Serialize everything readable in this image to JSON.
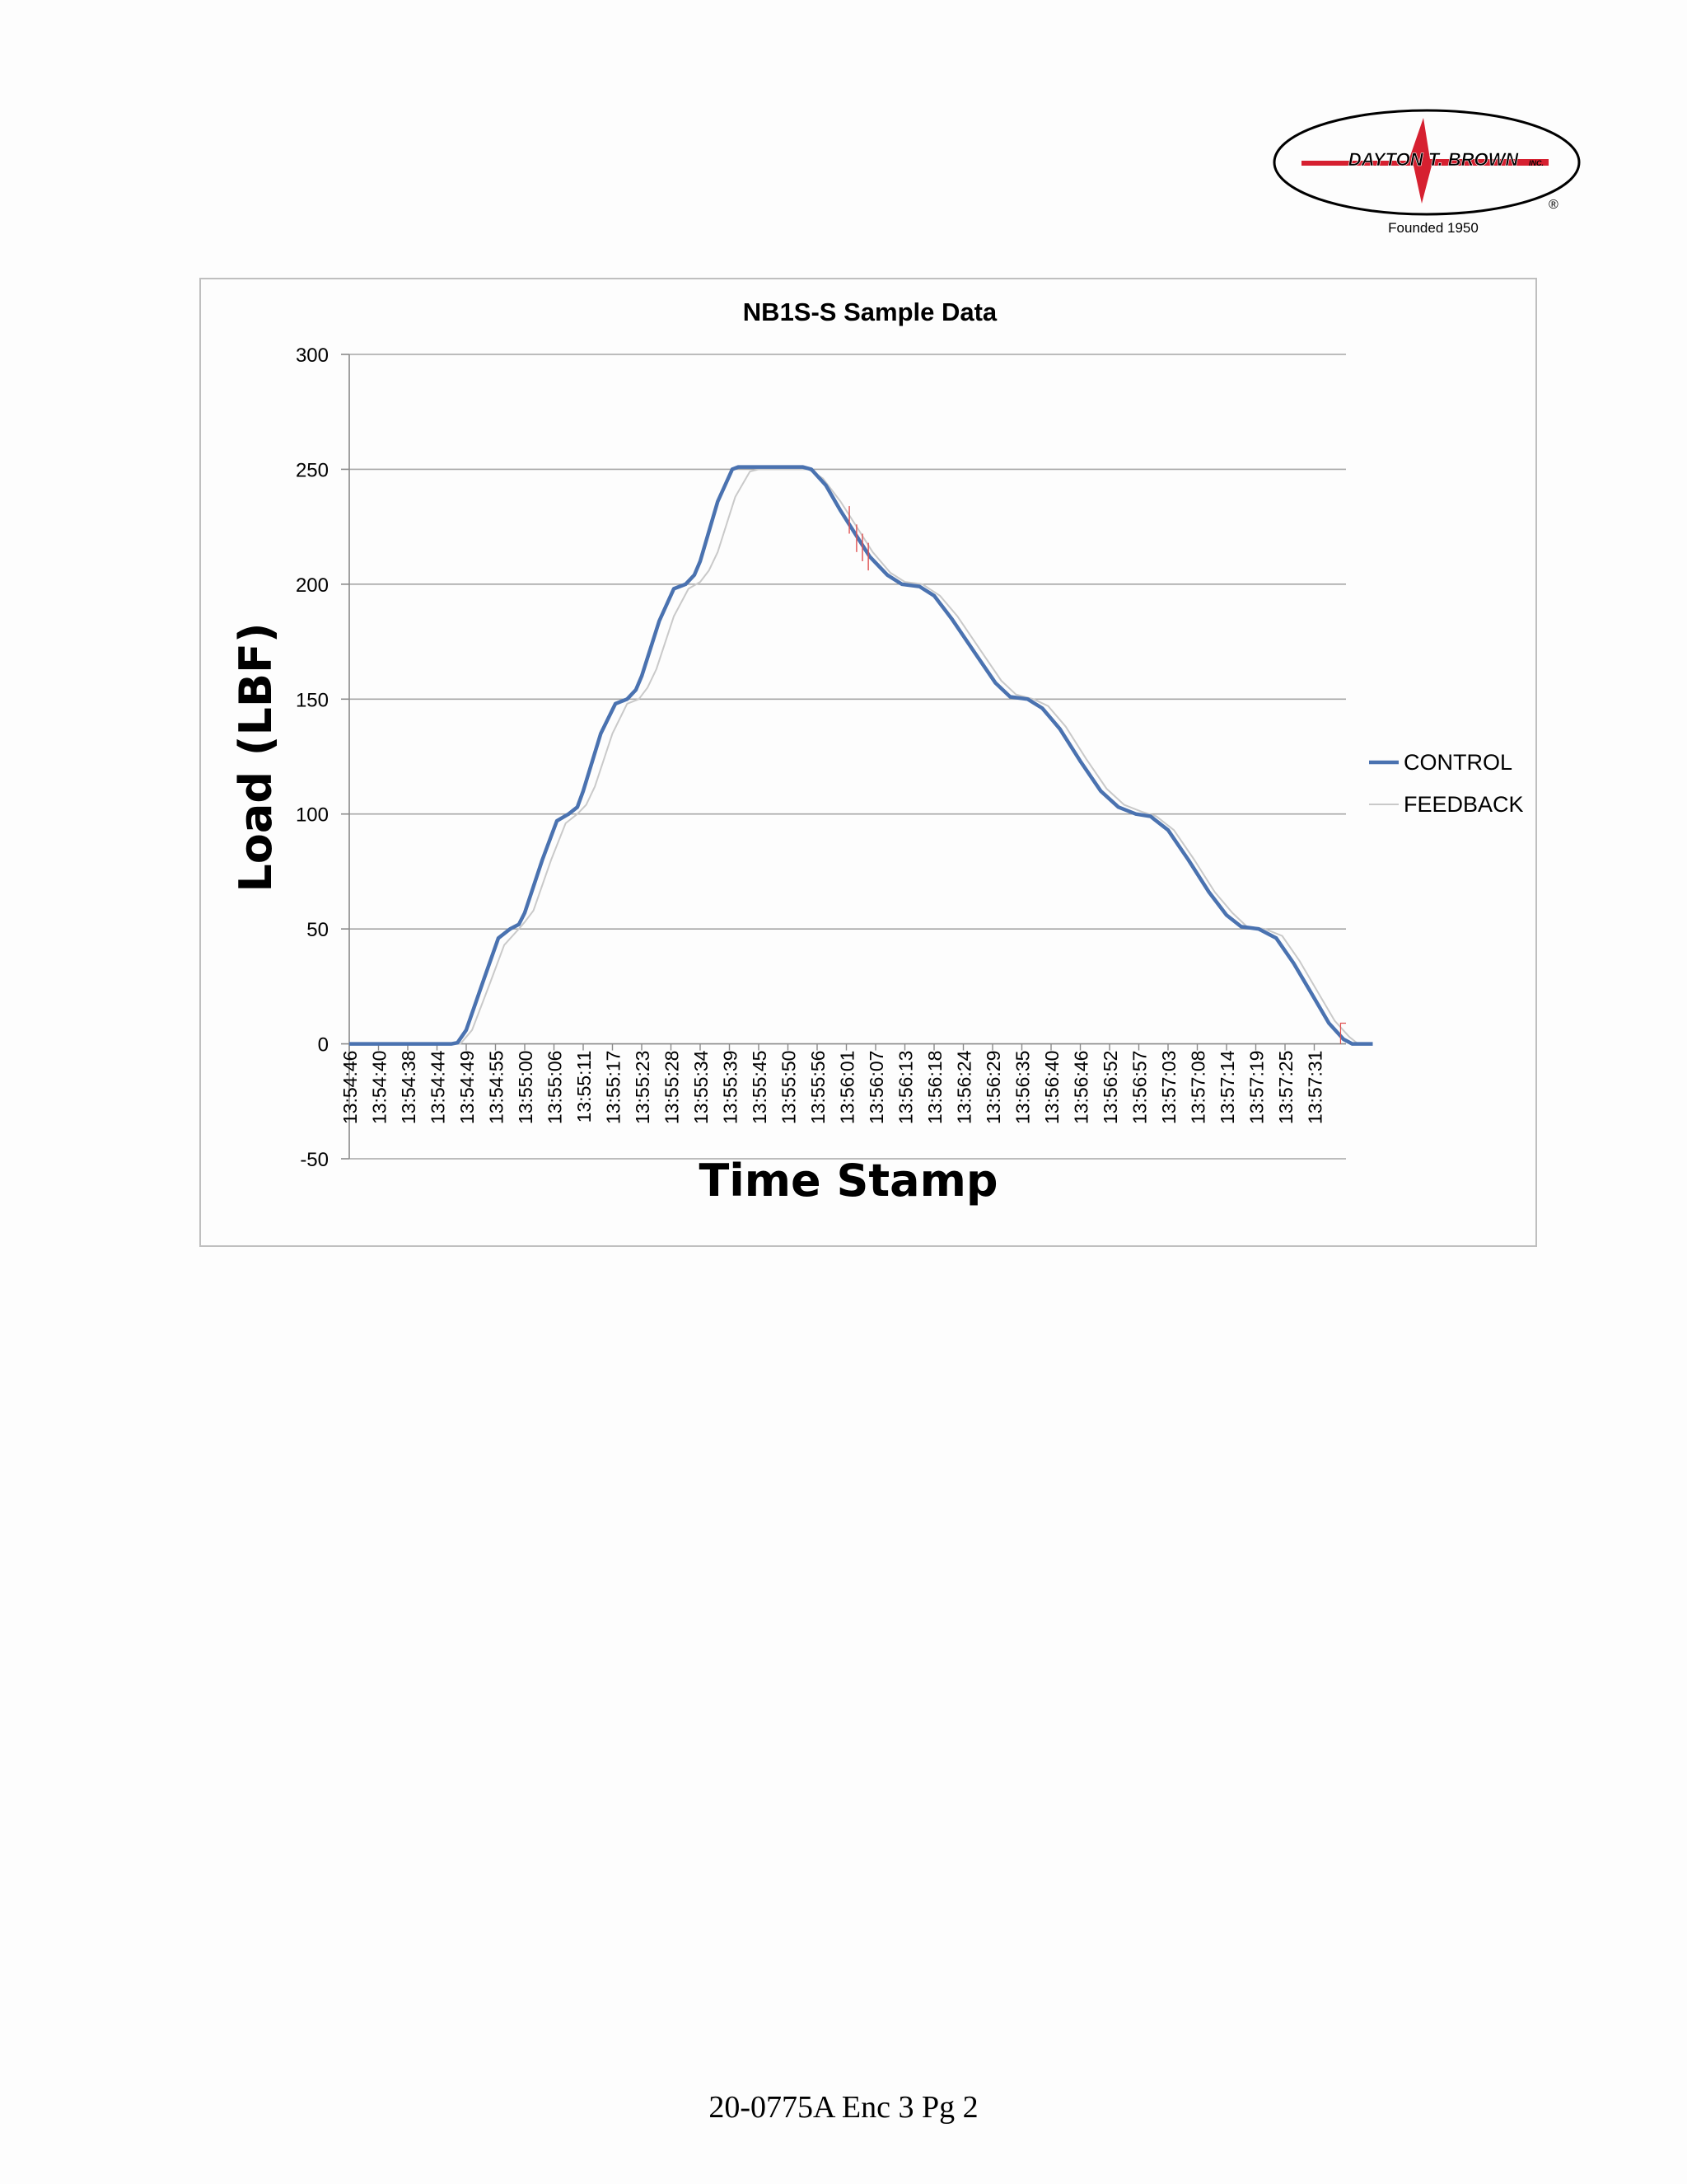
{
  "logo": {
    "company": "DAYTON T. BROWN",
    "suffix": "INC.",
    "founded": "Founded 1950",
    "registered": "®"
  },
  "footer": {
    "text": "20-0775A Enc 3 Pg 2"
  },
  "colors": {
    "control": "#4a72b0",
    "feedback": "#c9c9c9",
    "red_trace": "#e05050",
    "logo_red": "#d62030",
    "grid": "#a6a6a6"
  },
  "chart_data": {
    "type": "line",
    "title": "NB1S-S Sample Data",
    "xlabel": "Time Stamp",
    "ylabel": "Load (LBF)",
    "ylim": [
      -50,
      300
    ],
    "yticks": [
      -50,
      0,
      50,
      100,
      150,
      200,
      250,
      300
    ],
    "grid": true,
    "legend_position": "right",
    "categories": [
      "13:54:46",
      "13:54:40",
      "13:54:38",
      "13:54:44",
      "13:54:49",
      "13:54:55",
      "13:55:00",
      "13:55:06",
      "13:55:11",
      "13:55:17",
      "13:55:23",
      "13:55:28",
      "13:55:34",
      "13:55:39",
      "13:55:45",
      "13:55:50",
      "13:55:56",
      "13:56:01",
      "13:56:07",
      "13:56:13",
      "13:56:18",
      "13:56:24",
      "13:56:29",
      "13:56:35",
      "13:56:40",
      "13:56:46",
      "13:56:52",
      "13:56:57",
      "13:57:03",
      "13:57:08",
      "13:57:14",
      "13:57:19",
      "13:57:25",
      "13:57:31"
    ],
    "series": [
      {
        "name": "CONTROL",
        "points": [
          [
            0,
            0
          ],
          [
            3.5,
            0
          ],
          [
            3.7,
            0.5
          ],
          [
            4,
            6
          ],
          [
            4.6,
            28
          ],
          [
            5.1,
            46
          ],
          [
            5.5,
            50
          ],
          [
            5.8,
            52
          ],
          [
            6,
            57
          ],
          [
            6.6,
            80
          ],
          [
            7.1,
            97
          ],
          [
            7.5,
            100
          ],
          [
            7.8,
            103
          ],
          [
            8,
            110
          ],
          [
            8.6,
            135
          ],
          [
            9.1,
            148
          ],
          [
            9.5,
            150
          ],
          [
            9.8,
            154
          ],
          [
            10,
            160
          ],
          [
            10.6,
            184
          ],
          [
            11.1,
            198
          ],
          [
            11.5,
            200
          ],
          [
            11.8,
            204
          ],
          [
            12,
            210
          ],
          [
            12.6,
            236
          ],
          [
            13.1,
            250
          ],
          [
            13.3,
            251
          ],
          [
            15.5,
            251
          ],
          [
            15.8,
            250
          ],
          [
            16.3,
            243
          ],
          [
            16.8,
            232
          ],
          [
            17.3,
            222
          ],
          [
            17.8,
            212
          ],
          [
            18.4,
            204
          ],
          [
            18.9,
            200
          ],
          [
            19.5,
            199
          ],
          [
            20,
            195
          ],
          [
            20.6,
            185
          ],
          [
            21.4,
            170
          ],
          [
            22.1,
            157
          ],
          [
            22.6,
            151
          ],
          [
            23.2,
            150
          ],
          [
            23.7,
            146
          ],
          [
            24.3,
            137
          ],
          [
            25,
            123
          ],
          [
            25.7,
            110
          ],
          [
            26.3,
            103
          ],
          [
            26.9,
            100
          ],
          [
            27.4,
            99
          ],
          [
            28,
            93
          ],
          [
            28.7,
            80
          ],
          [
            29.4,
            66
          ],
          [
            30,
            56
          ],
          [
            30.5,
            51
          ],
          [
            31.1,
            50
          ],
          [
            31.7,
            46
          ],
          [
            32.3,
            35
          ],
          [
            32.9,
            22
          ],
          [
            33.5,
            9
          ],
          [
            34,
            2
          ],
          [
            34.3,
            0
          ],
          [
            35,
            0
          ]
        ]
      },
      {
        "name": "FEEDBACK",
        "points": [
          [
            0,
            0
          ],
          [
            3.8,
            0
          ],
          [
            4.2,
            6
          ],
          [
            4.8,
            26
          ],
          [
            5.3,
            43
          ],
          [
            5.8,
            50
          ],
          [
            6,
            53
          ],
          [
            6.3,
            58
          ],
          [
            6.9,
            80
          ],
          [
            7.4,
            96
          ],
          [
            7.8,
            100
          ],
          [
            8.1,
            104
          ],
          [
            8.4,
            112
          ],
          [
            9,
            135
          ],
          [
            9.5,
            148
          ],
          [
            9.9,
            150
          ],
          [
            10.2,
            155
          ],
          [
            10.5,
            163
          ],
          [
            11.1,
            186
          ],
          [
            11.6,
            198
          ],
          [
            12,
            201
          ],
          [
            12.3,
            206
          ],
          [
            12.6,
            214
          ],
          [
            13.2,
            238
          ],
          [
            13.7,
            249
          ],
          [
            14,
            250
          ],
          [
            15.7,
            250
          ],
          [
            16.2,
            246
          ],
          [
            16.8,
            236
          ],
          [
            17.4,
            224
          ],
          [
            17.9,
            214
          ],
          [
            18.5,
            205
          ],
          [
            19,
            201
          ],
          [
            19.6,
            200
          ],
          [
            20.2,
            195
          ],
          [
            20.8,
            186
          ],
          [
            21.6,
            171
          ],
          [
            22.3,
            158
          ],
          [
            22.8,
            152
          ],
          [
            23.4,
            150
          ],
          [
            23.9,
            147
          ],
          [
            24.5,
            138
          ],
          [
            25.2,
            124
          ],
          [
            25.9,
            111
          ],
          [
            26.5,
            104
          ],
          [
            27.1,
            101
          ],
          [
            27.6,
            99
          ],
          [
            28.2,
            93
          ],
          [
            28.9,
            80
          ],
          [
            29.6,
            66
          ],
          [
            30.2,
            57
          ],
          [
            30.7,
            51
          ],
          [
            31.3,
            50
          ],
          [
            31.9,
            47
          ],
          [
            32.5,
            36
          ],
          [
            33.1,
            23
          ],
          [
            33.7,
            10
          ],
          [
            34.2,
            3
          ],
          [
            34.5,
            0
          ],
          [
            35,
            0
          ]
        ]
      }
    ]
  }
}
